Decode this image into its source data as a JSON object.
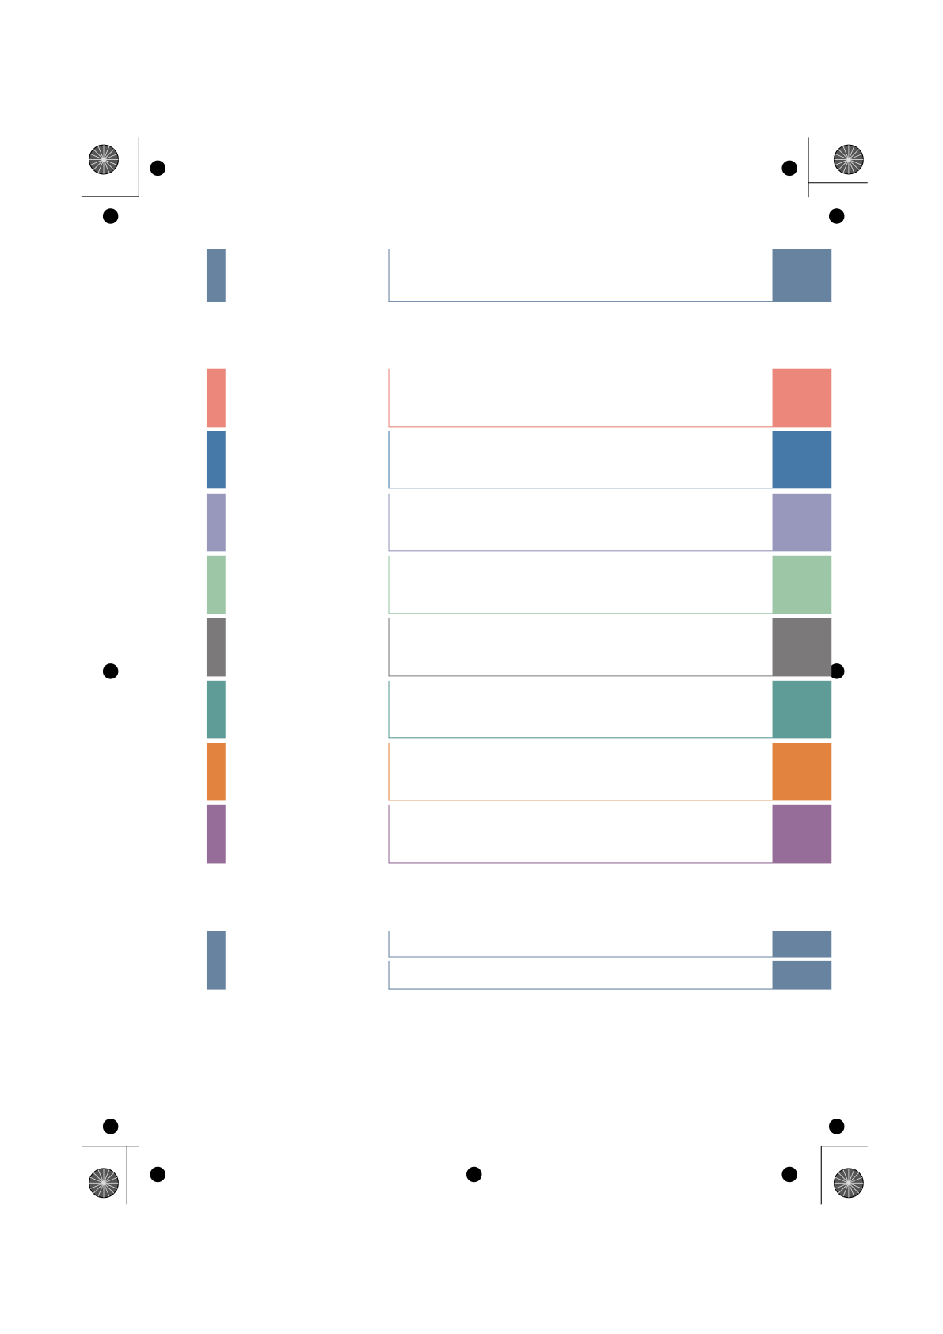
{
  "sections": [
    {
      "tab": "#6783a0",
      "rows": [
        "#6783a0"
      ]
    },
    {
      "rows": [
        "#ec877b",
        "#4679a8",
        "#9898bd",
        "#9dc6a7",
        "#7b797a",
        "#5f9c97",
        "#e2833f",
        "#966c98"
      ]
    },
    {
      "tab": "#6783a0",
      "rows": [
        "#6783a0",
        "#6783a0"
      ]
    }
  ]
}
